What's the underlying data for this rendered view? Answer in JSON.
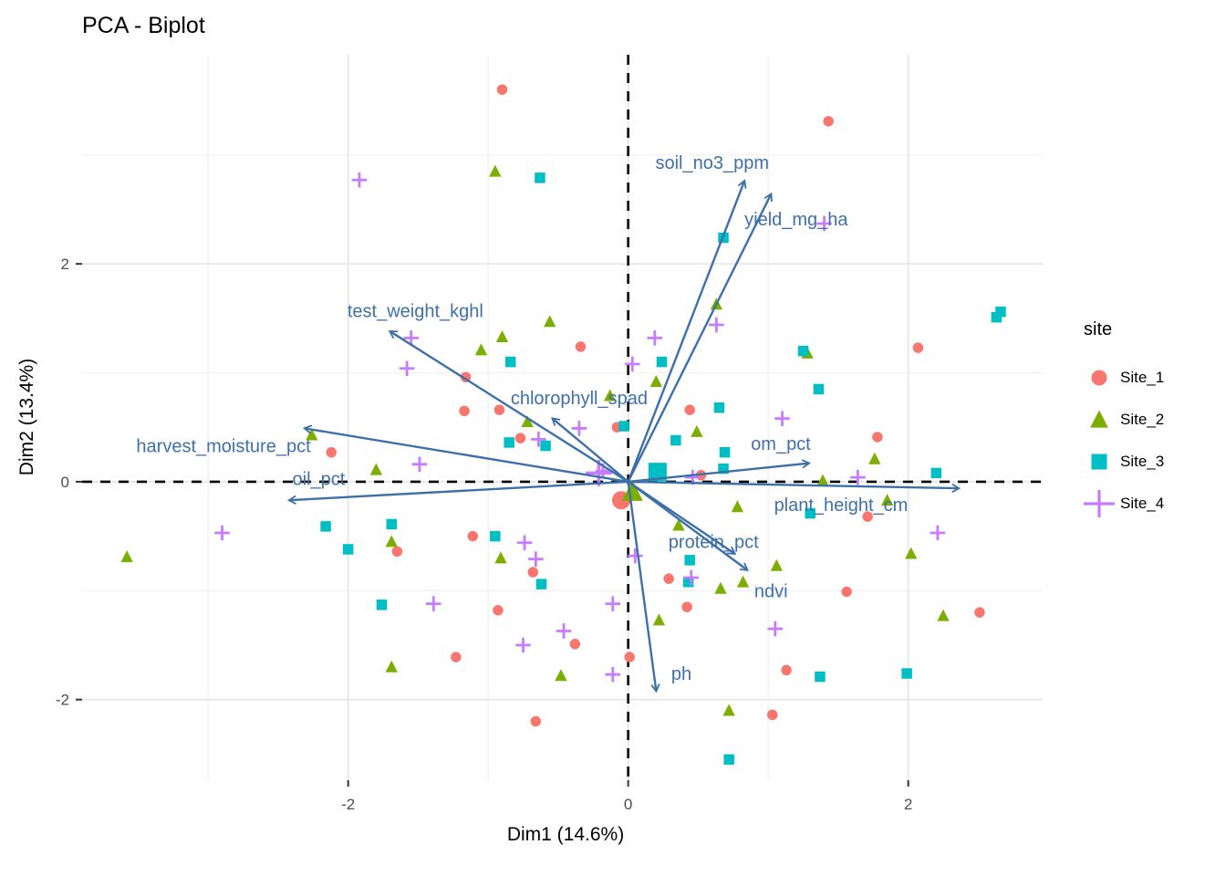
{
  "title": "PCA - Biplot",
  "legend": {
    "title": "site",
    "items": [
      {
        "label": "Site_1",
        "shape": "circle",
        "color": "#F8766D"
      },
      {
        "label": "Site_2",
        "shape": "triangle",
        "color": "#7CAE00"
      },
      {
        "label": "Site_3",
        "shape": "square",
        "color": "#00BFC4"
      },
      {
        "label": "Site_4",
        "shape": "plus",
        "color": "#C77CFF"
      }
    ]
  },
  "chart_data": {
    "type": "scatter",
    "title": "PCA - Biplot",
    "xlabel": "Dim1 (14.6%)",
    "ylabel": "Dim2 (13.4%)",
    "xlim": [
      -3.9,
      2.96
    ],
    "ylim": [
      -2.74,
      3.92
    ],
    "x_ticks": [
      -2,
      0,
      2
    ],
    "y_ticks": [
      -2,
      0,
      2
    ],
    "grid": true,
    "legend_position": "right",
    "reference_lines": {
      "x": 0,
      "y": 0,
      "style": "dashed",
      "color": "#000000"
    },
    "arrow_color": "#3E70A8",
    "axis_text_color": "#4D4D4D",
    "series": [
      {
        "name": "Site_1",
        "shape": "circle",
        "color": "#F8766D",
        "points": [
          [
            -0.9,
            3.6
          ],
          [
            -0.34,
            1.24
          ],
          [
            -1.16,
            0.96
          ],
          [
            -1.17,
            0.65
          ],
          [
            -0.92,
            0.66
          ],
          [
            -0.77,
            0.4
          ],
          [
            -2.12,
            0.27
          ],
          [
            -0.08,
            0.5
          ],
          [
            1.43,
            3.31
          ],
          [
            2.07,
            1.23
          ],
          [
            0.44,
            0.66
          ],
          [
            1.78,
            0.41
          ],
          [
            0.52,
            0.06
          ],
          [
            -1.65,
            -0.64
          ],
          [
            -1.11,
            -0.5
          ],
          [
            -0.68,
            -0.83
          ],
          [
            -0.93,
            -1.18
          ],
          [
            -0.38,
            -1.49
          ],
          [
            -1.23,
            -1.61
          ],
          [
            -0.66,
            -2.2
          ],
          [
            1.71,
            -0.32
          ],
          [
            0.29,
            -0.89
          ],
          [
            0.42,
            -1.15
          ],
          [
            1.56,
            -1.01
          ],
          [
            2.51,
            -1.2
          ],
          [
            1.13,
            -1.73
          ],
          [
            1.03,
            -2.14
          ],
          [
            0.01,
            -1.61
          ]
        ],
        "centroid": [
          -0.05,
          -0.17
        ]
      },
      {
        "name": "Site_2",
        "shape": "triangle",
        "color": "#7CAE00",
        "points": [
          [
            -0.95,
            2.85
          ],
          [
            -1.05,
            1.21
          ],
          [
            -0.9,
            1.33
          ],
          [
            -0.56,
            1.47
          ],
          [
            -0.72,
            0.55
          ],
          [
            -2.26,
            0.43
          ],
          [
            -1.8,
            0.11
          ],
          [
            -0.13,
            0.79
          ],
          [
            0.63,
            1.63
          ],
          [
            1.28,
            1.18
          ],
          [
            0.2,
            0.92
          ],
          [
            0.49,
            0.46
          ],
          [
            1.76,
            0.21
          ],
          [
            1.39,
            0.01
          ],
          [
            -3.58,
            -0.69
          ],
          [
            -1.69,
            -0.55
          ],
          [
            -0.91,
            -0.7
          ],
          [
            -1.69,
            -1.7
          ],
          [
            -0.48,
            -1.78
          ],
          [
            0.36,
            -0.4
          ],
          [
            0.78,
            -0.23
          ],
          [
            1.85,
            -0.17
          ],
          [
            2.02,
            -0.66
          ],
          [
            0.66,
            -0.98
          ],
          [
            0.82,
            -0.92
          ],
          [
            1.06,
            -0.77
          ],
          [
            0.22,
            -1.27
          ],
          [
            2.25,
            -1.23
          ],
          [
            0.72,
            -2.1
          ]
        ],
        "centroid": [
          0.03,
          -0.09
        ]
      },
      {
        "name": "Site_3",
        "shape": "square",
        "color": "#00BFC4",
        "points": [
          [
            -0.63,
            2.79
          ],
          [
            -0.84,
            1.1
          ],
          [
            -0.85,
            0.36
          ],
          [
            -0.59,
            0.33
          ],
          [
            -0.03,
            0.51
          ],
          [
            0.68,
            2.24
          ],
          [
            2.63,
            1.51
          ],
          [
            2.66,
            1.56
          ],
          [
            1.25,
            1.2
          ],
          [
            0.24,
            1.1
          ],
          [
            1.36,
            0.85
          ],
          [
            0.65,
            0.68
          ],
          [
            0.34,
            0.38
          ],
          [
            0.69,
            0.27
          ],
          [
            0.68,
            0.12
          ],
          [
            2.2,
            0.08
          ],
          [
            -2.16,
            -0.41
          ],
          [
            -2.0,
            -0.62
          ],
          [
            -1.69,
            -0.39
          ],
          [
            -0.95,
            -0.5
          ],
          [
            -0.62,
            -0.94
          ],
          [
            -1.76,
            -1.13
          ],
          [
            0.44,
            -0.72
          ],
          [
            0.43,
            -0.92
          ],
          [
            1.3,
            -0.29
          ],
          [
            1.37,
            -1.79
          ],
          [
            1.99,
            -1.76
          ],
          [
            0.72,
            -2.55
          ]
        ],
        "centroid": [
          0.21,
          0.09
        ]
      },
      {
        "name": "Site_4",
        "shape": "plus",
        "color": "#C77CFF",
        "points": [
          [
            -1.92,
            2.77
          ],
          [
            -1.55,
            1.32
          ],
          [
            -1.58,
            1.04
          ],
          [
            -0.64,
            0.39
          ],
          [
            -0.35,
            0.49
          ],
          [
            -1.49,
            0.16
          ],
          [
            -0.18,
            0.1
          ],
          [
            1.4,
            2.37
          ],
          [
            0.63,
            1.44
          ],
          [
            0.19,
            1.32
          ],
          [
            0.03,
            1.08
          ],
          [
            1.1,
            0.58
          ],
          [
            0.46,
            0.04
          ],
          [
            1.64,
            0.04
          ],
          [
            -2.9,
            -0.47
          ],
          [
            -0.74,
            -0.56
          ],
          [
            -0.66,
            -0.71
          ],
          [
            -1.39,
            -1.12
          ],
          [
            -0.11,
            -1.12
          ],
          [
            -0.46,
            -1.37
          ],
          [
            -0.75,
            -1.5
          ],
          [
            -0.11,
            -1.77
          ],
          [
            0.05,
            -0.68
          ],
          [
            0.45,
            -0.88
          ],
          [
            1.05,
            -1.35
          ],
          [
            2.21,
            -0.47
          ]
        ],
        "centroid": [
          -0.21,
          0.08
        ]
      }
    ],
    "loadings": [
      {
        "name": "soil_no3_ppm",
        "tip": [
          0.83,
          2.76
        ],
        "label_pos": [
          0.6,
          2.93
        ]
      },
      {
        "name": "yield_mg_ha",
        "tip": [
          1.02,
          2.64
        ],
        "label_pos": [
          1.2,
          2.41
        ]
      },
      {
        "name": "test_weight_kghl",
        "tip": [
          -1.7,
          1.38
        ],
        "label_pos": [
          -1.52,
          1.57
        ]
      },
      {
        "name": "chlorophyll_spad",
        "tip": [
          -0.54,
          0.58
        ],
        "label_pos": [
          -0.35,
          0.77
        ]
      },
      {
        "name": "harvest_moisture_pct",
        "tip": [
          -2.31,
          0.49
        ],
        "label_pos": [
          -2.89,
          0.33
        ]
      },
      {
        "name": "oil_pct",
        "tip": [
          -2.42,
          -0.17
        ],
        "label_pos": [
          -2.21,
          0.03
        ]
      },
      {
        "name": "om_pct",
        "tip": [
          1.29,
          0.17
        ],
        "label_pos": [
          1.09,
          0.35
        ]
      },
      {
        "name": "plant_height_cm",
        "tip": [
          2.36,
          -0.06
        ],
        "label_pos": [
          1.52,
          -0.21
        ]
      },
      {
        "name": "protein_pct",
        "tip": [
          0.76,
          -0.66
        ],
        "label_pos": [
          0.61,
          -0.55
        ]
      },
      {
        "name": "ndvi",
        "tip": [
          0.85,
          -0.81
        ],
        "label_pos": [
          1.02,
          -1.0
        ]
      },
      {
        "name": "ph",
        "tip": [
          0.2,
          -1.92
        ],
        "label_pos": [
          0.38,
          -1.76
        ]
      }
    ]
  }
}
